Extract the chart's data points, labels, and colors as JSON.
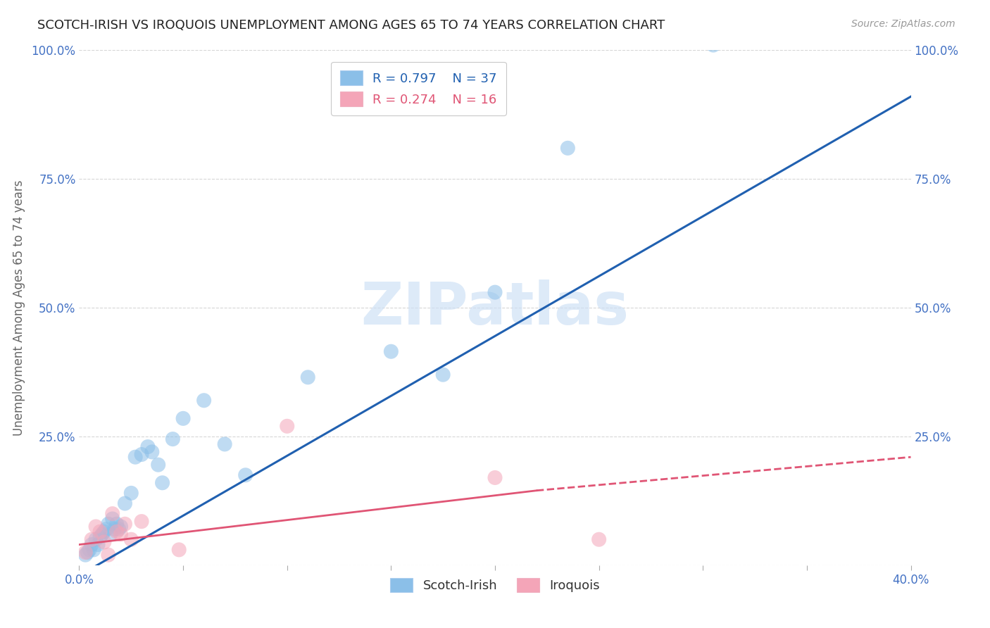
{
  "title": "SCOTCH-IRISH VS IROQUOIS UNEMPLOYMENT AMONG AGES 65 TO 74 YEARS CORRELATION CHART",
  "source": "Source: ZipAtlas.com",
  "ylabel_left": "Unemployment Among Ages 65 to 74 years",
  "xlim": [
    0.0,
    0.4
  ],
  "ylim": [
    0.0,
    1.0
  ],
  "xticks": [
    0.0,
    0.05,
    0.1,
    0.15,
    0.2,
    0.25,
    0.3,
    0.35,
    0.4
  ],
  "yticks": [
    0.0,
    0.25,
    0.5,
    0.75,
    1.0
  ],
  "ytick_labels": [
    "",
    "25.0%",
    "50.0%",
    "75.0%",
    "100.0%"
  ],
  "scotch_irish_R": 0.797,
  "scotch_irish_N": 37,
  "iroquois_R": 0.274,
  "iroquois_N": 16,
  "scotch_irish_color": "#8bbfe8",
  "iroquois_color": "#f4a5b8",
  "scotch_irish_line_color": "#2060b0",
  "iroquois_line_color": "#e05575",
  "background_color": "#ffffff",
  "grid_color": "#cccccc",
  "title_color": "#222222",
  "axis_label_color": "#666666",
  "tick_label_color": "#4472c4",
  "scotch_irish_x": [
    0.003,
    0.004,
    0.005,
    0.006,
    0.007,
    0.008,
    0.009,
    0.01,
    0.011,
    0.012,
    0.013,
    0.014,
    0.015,
    0.016,
    0.017,
    0.018,
    0.019,
    0.02,
    0.022,
    0.025,
    0.027,
    0.03,
    0.033,
    0.035,
    0.038,
    0.04,
    0.045,
    0.05,
    0.06,
    0.07,
    0.08,
    0.11,
    0.15,
    0.175,
    0.2,
    0.235,
    0.305
  ],
  "scotch_irish_y": [
    0.02,
    0.025,
    0.03,
    0.04,
    0.03,
    0.05,
    0.04,
    0.055,
    0.06,
    0.065,
    0.07,
    0.08,
    0.06,
    0.09,
    0.07,
    0.08,
    0.07,
    0.075,
    0.12,
    0.14,
    0.21,
    0.215,
    0.23,
    0.22,
    0.195,
    0.16,
    0.245,
    0.285,
    0.32,
    0.235,
    0.175,
    0.365,
    0.415,
    0.37,
    0.53,
    0.81,
    1.01
  ],
  "iroquois_x": [
    0.003,
    0.006,
    0.008,
    0.01,
    0.012,
    0.014,
    0.016,
    0.018,
    0.02,
    0.022,
    0.025,
    0.03,
    0.048,
    0.1,
    0.2,
    0.25
  ],
  "iroquois_y": [
    0.025,
    0.05,
    0.075,
    0.065,
    0.045,
    0.02,
    0.1,
    0.065,
    0.06,
    0.08,
    0.05,
    0.085,
    0.03,
    0.27,
    0.17,
    0.05
  ],
  "si_trend_x0": 0.0,
  "si_trend_x1": 0.4,
  "si_trend_y0": -0.02,
  "si_trend_y1": 0.91,
  "iq_trend_solid_x0": 0.0,
  "iq_trend_solid_x1": 0.22,
  "iq_trend_solid_y0": 0.04,
  "iq_trend_solid_y1": 0.145,
  "iq_trend_dash_x0": 0.22,
  "iq_trend_dash_x1": 0.4,
  "iq_trend_dash_y0": 0.145,
  "iq_trend_dash_y1": 0.21
}
